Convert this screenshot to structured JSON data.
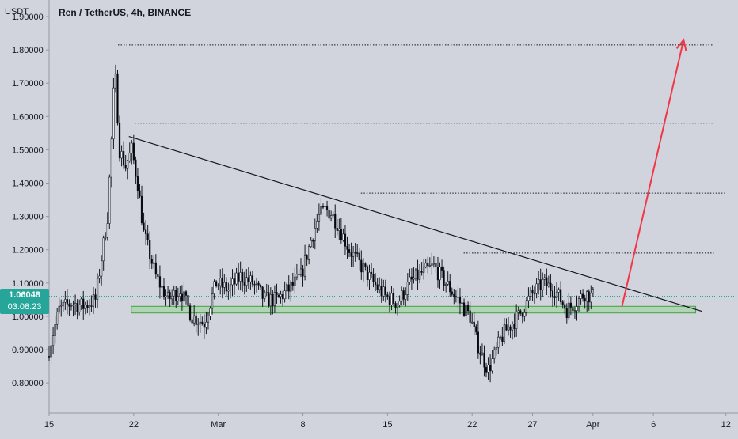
{
  "header": {
    "currency": "USDT",
    "title": "Ren / TetherUS, 4h, BINANCE"
  },
  "price_tag": {
    "price": "1.06048",
    "countdown": "03:08:23",
    "color": "#26a69a"
  },
  "colors": {
    "background": "#d1d4dc",
    "up_candle": "#ffffff",
    "down_candle": "#000000",
    "wick": "#131722",
    "support_zone_fill": "#a5d6a7",
    "support_zone_border": "#43a047",
    "trendline": "#131722",
    "arrow": "#f23645",
    "dotted_levels": "#131722",
    "current_price_line": "#26a69a"
  },
  "chart_data": {
    "type": "candlestick",
    "title": "Ren / TetherUS, 4h, BINANCE",
    "ylabel": "USDT",
    "ylim": [
      0.71,
      1.95
    ],
    "y_ticks": [
      "1.90000",
      "1.80000",
      "1.70000",
      "1.60000",
      "1.50000",
      "1.40000",
      "1.30000",
      "1.20000",
      "1.10000",
      "1.00000",
      "0.90000",
      "0.80000"
    ],
    "y_tick_values": [
      1.9,
      1.8,
      1.7,
      1.6,
      1.5,
      1.4,
      1.3,
      1.2,
      1.1,
      1.0,
      0.9,
      0.8
    ],
    "x_ticks": [
      "15",
      "22",
      "Mar",
      "8",
      "15",
      "22",
      "27",
      "Apr",
      "6",
      "12"
    ],
    "x_tick_days": [
      0,
      7,
      14,
      21,
      28,
      35,
      40,
      45,
      50,
      56
    ],
    "xlim_days": [
      0,
      57
    ],
    "x_start_date": "Feb 15",
    "price_path_days": [
      0,
      1,
      2,
      3,
      4,
      5,
      5.3,
      5.6,
      6,
      6.5,
      7,
      7.5,
      8,
      9,
      10,
      11,
      12,
      13,
      14,
      15,
      16,
      17,
      18,
      19,
      20,
      21,
      22,
      22.5,
      23,
      23.5,
      24,
      25,
      26,
      27,
      28,
      29,
      30,
      31,
      32,
      33,
      34,
      35,
      35.5,
      36,
      36.5,
      37,
      37.5,
      38,
      39,
      40,
      41,
      42,
      43,
      44,
      44.5,
      45
    ],
    "price_path_close": [
      0.88,
      1.02,
      1.04,
      1.03,
      1.05,
      1.3,
      1.5,
      1.75,
      1.5,
      1.45,
      1.5,
      1.4,
      1.25,
      1.12,
      1.05,
      1.08,
      1.0,
      0.98,
      1.1,
      1.08,
      1.12,
      1.1,
      1.05,
      1.05,
      1.08,
      1.12,
      1.25,
      1.3,
      1.32,
      1.31,
      1.28,
      1.2,
      1.15,
      1.1,
      1.06,
      1.04,
      1.1,
      1.13,
      1.15,
      1.1,
      1.05,
      1.0,
      0.93,
      0.88,
      0.84,
      0.88,
      0.93,
      0.96,
      1.0,
      1.06,
      1.1,
      1.08,
      1.02,
      1.05,
      1.07,
      1.06
    ],
    "annotations": {
      "support_zone": {
        "x_days": [
          6.8,
          53.5
        ],
        "y_range": [
          1.01,
          1.03
        ]
      },
      "trendline": {
        "from": [
          6.6,
          1.54
        ],
        "to": [
          54,
          1.015
        ]
      },
      "horizontal_levels": [
        {
          "price": 1.815,
          "x_days": [
            5.7,
            55
          ]
        },
        {
          "price": 1.58,
          "x_days": [
            7.1,
            55
          ]
        },
        {
          "price": 1.37,
          "x_days": [
            25.8,
            56
          ]
        },
        {
          "price": 1.19,
          "x_days": [
            34.3,
            55
          ]
        }
      ],
      "current_price": 1.06048,
      "arrow": {
        "from": [
          47.4,
          1.03
        ],
        "to": [
          52.5,
          1.83
        ]
      }
    }
  }
}
